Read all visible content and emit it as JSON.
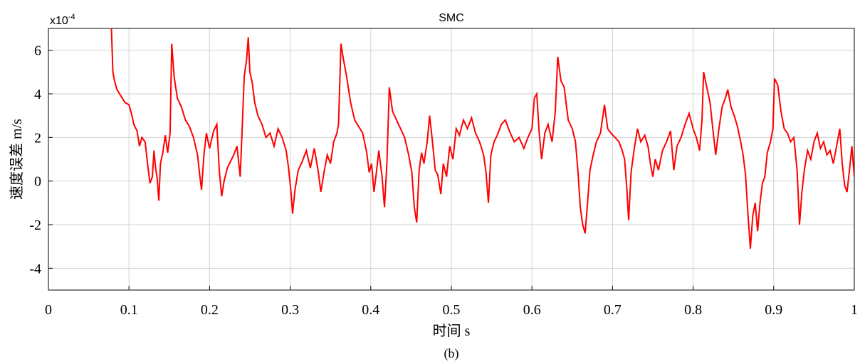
{
  "chart_data": {
    "type": "line",
    "title": "SMC",
    "xlabel": "时间 s",
    "ylabel": "速度误差 m/s",
    "caption": "(b)",
    "y_multiplier": {
      "base": "x10",
      "exponent": "-4"
    },
    "xlim": [
      0,
      1
    ],
    "xticks": [
      0,
      0.1,
      0.2,
      0.3,
      0.4,
      0.5,
      0.6,
      0.7,
      0.8,
      0.9,
      1
    ],
    "ylim": [
      -5,
      7
    ],
    "yticks": [
      -4,
      -2,
      0,
      2,
      4,
      6
    ],
    "grid": true,
    "x": [
      0.078,
      0.08,
      0.082,
      0.085,
      0.09,
      0.095,
      0.1,
      0.103,
      0.106,
      0.11,
      0.113,
      0.116,
      0.12,
      0.123,
      0.126,
      0.129,
      0.131,
      0.133,
      0.135,
      0.137,
      0.139,
      0.142,
      0.145,
      0.148,
      0.151,
      0.153,
      0.156,
      0.16,
      0.165,
      0.17,
      0.175,
      0.18,
      0.185,
      0.188,
      0.19,
      0.193,
      0.196,
      0.2,
      0.205,
      0.209,
      0.212,
      0.215,
      0.218,
      0.222,
      0.226,
      0.23,
      0.234,
      0.238,
      0.24,
      0.243,
      0.246,
      0.248,
      0.25,
      0.253,
      0.256,
      0.26,
      0.265,
      0.27,
      0.275,
      0.28,
      0.285,
      0.29,
      0.295,
      0.298,
      0.301,
      0.303,
      0.306,
      0.31,
      0.315,
      0.32,
      0.325,
      0.33,
      0.335,
      0.338,
      0.342,
      0.346,
      0.35,
      0.354,
      0.358,
      0.36,
      0.363,
      0.366,
      0.37,
      0.375,
      0.38,
      0.385,
      0.39,
      0.395,
      0.398,
      0.401,
      0.404,
      0.407,
      0.41,
      0.414,
      0.417,
      0.42,
      0.423,
      0.427,
      0.432,
      0.437,
      0.442,
      0.447,
      0.451,
      0.454,
      0.457,
      0.46,
      0.463,
      0.466,
      0.47,
      0.473,
      0.476,
      0.48,
      0.483,
      0.487,
      0.49,
      0.494,
      0.498,
      0.502,
      0.506,
      0.51,
      0.515,
      0.52,
      0.525,
      0.53,
      0.535,
      0.54,
      0.543,
      0.546,
      0.549,
      0.553,
      0.557,
      0.562,
      0.567,
      0.572,
      0.578,
      0.584,
      0.59,
      0.595,
      0.6,
      0.603,
      0.606,
      0.609,
      0.612,
      0.616,
      0.62,
      0.625,
      0.629,
      0.632,
      0.636,
      0.64,
      0.645,
      0.65,
      0.654,
      0.657,
      0.66,
      0.663,
      0.666,
      0.669,
      0.672,
      0.676,
      0.68,
      0.685,
      0.69,
      0.694,
      0.698,
      0.703,
      0.708,
      0.712,
      0.715,
      0.718,
      0.72,
      0.723,
      0.727,
      0.731,
      0.735,
      0.74,
      0.744,
      0.747,
      0.75,
      0.753,
      0.757,
      0.762,
      0.767,
      0.772,
      0.776,
      0.78,
      0.785,
      0.79,
      0.795,
      0.8,
      0.804,
      0.808,
      0.811,
      0.813,
      0.817,
      0.821,
      0.825,
      0.828,
      0.832,
      0.836,
      0.84,
      0.843,
      0.847,
      0.851,
      0.855,
      0.859,
      0.862,
      0.865,
      0.868,
      0.871,
      0.874,
      0.877,
      0.88,
      0.883,
      0.886,
      0.889,
      0.892,
      0.896,
      0.899,
      0.901,
      0.905,
      0.909,
      0.913,
      0.917,
      0.921,
      0.925,
      0.929,
      0.932,
      0.935,
      0.938,
      0.942,
      0.946,
      0.95,
      0.954,
      0.958,
      0.962,
      0.966,
      0.97,
      0.974,
      0.978,
      0.982,
      0.985,
      0.988,
      0.991,
      0.994,
      0.997,
      1
    ],
    "series": [
      {
        "name": "SMC",
        "color": "#ff0000",
        "values": [
          7.2,
          5.0,
          4.6,
          4.2,
          3.9,
          3.6,
          3.5,
          3.1,
          2.6,
          2.3,
          1.6,
          2.0,
          1.8,
          0.8,
          -0.1,
          0.2,
          1.4,
          0.6,
          0.1,
          -0.9,
          0.8,
          1.3,
          2.1,
          1.3,
          2.2,
          6.3,
          4.8,
          3.8,
          3.4,
          2.8,
          2.5,
          2.0,
          1.2,
          0.2,
          -0.4,
          1.2,
          2.2,
          1.5,
          2.3,
          2.6,
          0.5,
          -0.7,
          0.0,
          0.6,
          0.9,
          1.2,
          1.6,
          0.2,
          2.0,
          4.8,
          5.6,
          6.6,
          5.0,
          4.5,
          3.6,
          3.0,
          2.6,
          2.0,
          2.2,
          1.6,
          2.4,
          2.0,
          1.4,
          0.6,
          -0.5,
          -1.5,
          -0.4,
          0.5,
          0.9,
          1.4,
          0.6,
          1.5,
          0.4,
          -0.5,
          0.4,
          1.2,
          0.8,
          1.8,
          2.2,
          2.6,
          6.3,
          5.6,
          4.8,
          3.6,
          2.8,
          2.5,
          2.2,
          1.3,
          0.4,
          0.8,
          -0.5,
          0.4,
          1.4,
          0.2,
          -1.2,
          0.8,
          4.3,
          3.2,
          2.8,
          2.4,
          2.0,
          1.2,
          0.4,
          -1.2,
          -1.9,
          0.5,
          1.3,
          0.8,
          1.8,
          3.0,
          2.0,
          0.5,
          0.3,
          -0.6,
          0.8,
          0.2,
          1.6,
          1.0,
          2.4,
          2.1,
          2.8,
          2.4,
          2.9,
          2.2,
          1.8,
          1.2,
          0.4,
          -1.0,
          1.2,
          1.8,
          2.1,
          2.6,
          2.8,
          2.3,
          1.8,
          2.0,
          1.5,
          2.0,
          2.4,
          3.8,
          4.0,
          2.2,
          1.0,
          2.2,
          2.6,
          1.8,
          3.2,
          5.7,
          4.6,
          4.3,
          2.8,
          2.4,
          1.8,
          0.5,
          -1.2,
          -2.0,
          -2.4,
          -1.0,
          0.5,
          1.2,
          1.8,
          2.2,
          3.5,
          2.4,
          2.2,
          2.0,
          1.8,
          1.4,
          1.0,
          -0.5,
          -1.8,
          0.4,
          1.5,
          2.4,
          1.8,
          2.1,
          1.6,
          0.8,
          0.2,
          1.0,
          0.5,
          1.4,
          1.8,
          2.3,
          0.5,
          1.6,
          2.0,
          2.6,
          3.1,
          2.4,
          2.0,
          1.4,
          2.8,
          5.0,
          4.3,
          3.6,
          2.2,
          1.2,
          2.4,
          3.4,
          3.8,
          4.2,
          3.4,
          3.0,
          2.5,
          1.8,
          1.2,
          0.3,
          -1.5,
          -3.1,
          -1.6,
          -1.0,
          -2.3,
          -1.0,
          -0.1,
          0.2,
          1.3,
          1.8,
          2.4,
          4.7,
          4.4,
          3.2,
          2.4,
          2.2,
          1.8,
          2.0,
          0.5,
          -2.0,
          -0.5,
          0.5,
          1.4,
          1.0,
          1.8,
          2.2,
          1.5,
          1.8,
          1.2,
          1.4,
          0.8,
          1.6,
          2.4,
          0.8,
          -0.2,
          -0.5,
          0.5,
          1.6,
          0.2
        ]
      }
    ]
  }
}
